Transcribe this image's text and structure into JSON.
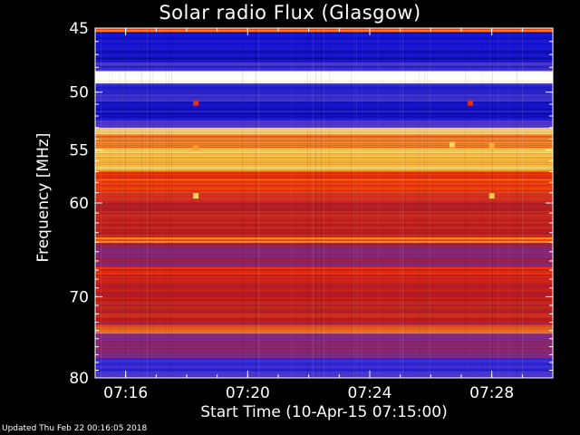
{
  "chart_data": {
    "type": "heatmap",
    "title": "Solar radio Flux (Glasgow)",
    "ylabel": "Frequency [MHz]",
    "xlabel": "Start Time (10-Apr-15 07:15:00)",
    "y_scale": "log",
    "y_reversed": true,
    "ylim": [
      45,
      80
    ],
    "yticks": [
      "45",
      "50",
      "55",
      "60",
      "70",
      "80"
    ],
    "xlim_minutes": [
      0,
      15
    ],
    "xticks": [
      "07:16",
      "07:20",
      "07:24",
      "07:28"
    ],
    "grid": false,
    "colormap": [
      "#000060",
      "#1010d0",
      "#4a3ad8",
      "#8a2b8a",
      "#b81818",
      "#e83010",
      "#ff7a10",
      "#ffd25a",
      "#ffffff"
    ],
    "intensity_bands": [
      {
        "f_start": 44.6,
        "f_end": 45.3,
        "level": 0.7
      },
      {
        "f_start": 45.3,
        "f_end": 47.6,
        "level": 0.12
      },
      {
        "f_start": 47.6,
        "f_end": 48.3,
        "level": 0.22
      },
      {
        "f_start": 48.3,
        "f_end": 49.3,
        "level": 0.98
      },
      {
        "f_start": 49.3,
        "f_end": 50.8,
        "level": 0.2
      },
      {
        "f_start": 50.8,
        "f_end": 52.4,
        "level": 0.14
      },
      {
        "f_start": 52.4,
        "f_end": 53.0,
        "level": 0.28
      },
      {
        "f_start": 53.0,
        "f_end": 53.6,
        "level": 0.9
      },
      {
        "f_start": 53.6,
        "f_end": 54.8,
        "level": 0.74
      },
      {
        "f_start": 54.8,
        "f_end": 57.0,
        "level": 0.85
      },
      {
        "f_start": 57.0,
        "f_end": 59.0,
        "level": 0.66
      },
      {
        "f_start": 59.0,
        "f_end": 61.5,
        "level": 0.58
      },
      {
        "f_start": 61.5,
        "f_end": 63.5,
        "level": 0.55
      },
      {
        "f_start": 63.5,
        "f_end": 64.1,
        "level": 0.72
      },
      {
        "f_start": 64.1,
        "f_end": 66.5,
        "level": 0.42
      },
      {
        "f_start": 66.5,
        "f_end": 67.8,
        "level": 0.58
      },
      {
        "f_start": 67.8,
        "f_end": 70.5,
        "level": 0.5
      },
      {
        "f_start": 70.5,
        "f_end": 72.5,
        "level": 0.56
      },
      {
        "f_start": 72.5,
        "f_end": 73.3,
        "level": 0.46
      },
      {
        "f_start": 73.3,
        "f_end": 74.4,
        "level": 0.7
      },
      {
        "f_start": 74.4,
        "f_end": 77.5,
        "level": 0.4
      },
      {
        "f_start": 77.5,
        "f_end": 81.0,
        "level": 0.22
      }
    ],
    "bursts": [
      {
        "t": 3.3,
        "f": 50.9,
        "level": 0.62
      },
      {
        "t": 3.3,
        "f": 54.8,
        "level": 0.8
      },
      {
        "t": 3.3,
        "f": 59.3,
        "level": 0.88
      },
      {
        "t": 11.7,
        "f": 54.5,
        "level": 0.88
      },
      {
        "t": 13.0,
        "f": 54.6,
        "level": 0.82
      },
      {
        "t": 13.0,
        "f": 59.3,
        "level": 0.86
      },
      {
        "t": 12.3,
        "f": 50.9,
        "level": 0.62
      }
    ]
  },
  "footer": {
    "updated": "Updated Thu Feb 22 00:16:05 2018"
  }
}
